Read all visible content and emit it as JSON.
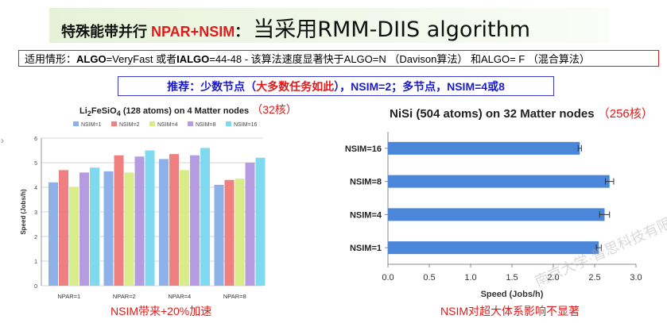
{
  "header": {
    "title_main": "特殊能带并行",
    "title_red": "NPAR+NSIM",
    "title_colon": "：",
    "title_big": "当采用RMM-DIIS algorithm"
  },
  "condition_box": {
    "prefix": "适用情形：",
    "algo_bold": "ALGO",
    "algo_val": "=VeryFast 或者",
    "ialgo_bold": "IALGO",
    "rest": "=44-48  - 该算法速度显著快于ALGO=N （Davison算法） 和ALGO= F （混合算法）"
  },
  "recommend_box": {
    "part1": "推荐：少数节点（",
    "part2": "大多数任务如此",
    "part3": "），NSIM=2；多节点，NSIM=4或8"
  },
  "left_caption": "NSIM带来+20%加速",
  "right_caption": "NSIM对超大体系影响不显著",
  "left_arrow": "›",
  "watermark": "南京大学·普思科技有限公司",
  "colors": {
    "red": "#e01a1a",
    "blue_text": "#1b1bcc",
    "bar_blue": "#4a86d9",
    "series": [
      "#8eb1ea",
      "#f07f7f",
      "#d8ec8a",
      "#b59be0",
      "#7fd9ef"
    ]
  },
  "chart_data": [
    {
      "type": "bar",
      "title_prefix": "Li",
      "title_sub1": "2",
      "title_mid": "FeSiO",
      "title_sub2": "4",
      "title_rest": " (128 atoms) on 4 Matter nodes",
      "title_red": "（32核）",
      "ylabel": "Speed (Jobs/h)",
      "xlabel": "",
      "ylim": [
        0,
        6
      ],
      "yticks": [
        "0",
        "1",
        "2",
        "3",
        "4",
        "5",
        "6"
      ],
      "grid": true,
      "legend": "top",
      "categories": [
        "NPAR=1",
        "NPAR=2",
        "NPAR=4",
        "NPAR=8"
      ],
      "series": [
        {
          "name": "NSIM=1",
          "values": [
            4.2,
            4.65,
            5.15,
            4.1
          ]
        },
        {
          "name": "NSIM=2",
          "values": [
            4.7,
            5.3,
            5.35,
            4.3
          ]
        },
        {
          "name": "NSIM=4",
          "values": [
            4.0,
            4.6,
            4.7,
            4.35
          ]
        },
        {
          "name": "NSIM=8",
          "values": [
            4.6,
            5.25,
            5.3,
            5.0
          ]
        },
        {
          "name": "NSIM=16",
          "values": [
            4.8,
            5.5,
            5.6,
            5.2
          ]
        }
      ]
    },
    {
      "type": "bar",
      "orientation": "horizontal",
      "title": "NiSi (504 atoms) on 32 Matter nodes",
      "title_red": "（256核）",
      "xlabel": "Speed (Jobs/h)",
      "ylabel": "",
      "xlim": [
        0,
        3.0
      ],
      "xticks": [
        "0.0",
        "0.5",
        "1.0",
        "1.5",
        "2.0",
        "2.5",
        "3.0"
      ],
      "grid": false,
      "categories": [
        "NSIM=16",
        "NSIM=8",
        "NSIM=4",
        "NSIM=1"
      ],
      "values": [
        2.32,
        2.68,
        2.62,
        2.55
      ],
      "errors": [
        0.02,
        0.05,
        0.06,
        0.03
      ]
    }
  ]
}
